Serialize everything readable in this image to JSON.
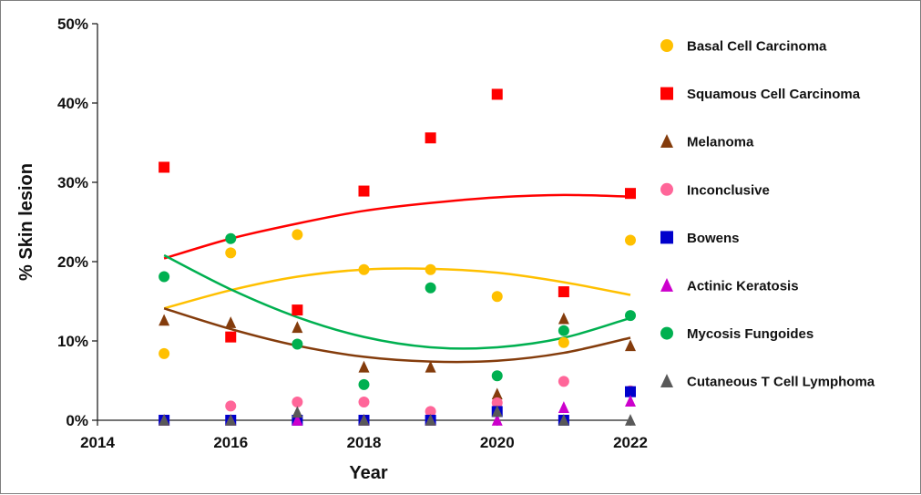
{
  "chart_data": {
    "type": "scatter",
    "title": "",
    "xlabel": "Year",
    "ylabel": "% Skin lesion",
    "xlim": [
      2014,
      2022
    ],
    "ylim": [
      0,
      50
    ],
    "x_ticks": [
      2014,
      2016,
      2018,
      2020,
      2022
    ],
    "x_tick_labels": [
      "2014",
      "2016",
      "2018",
      "2020",
      "2022"
    ],
    "y_ticks": [
      0,
      10,
      20,
      30,
      40,
      50
    ],
    "y_tick_labels": [
      "0%",
      "10%",
      "20%",
      "30%",
      "40%",
      "50%"
    ],
    "legend_position": "right",
    "series": [
      {
        "name": "Basal Cell Carcinoma",
        "color": "#FFC000",
        "marker": "circle",
        "x": [
          2015,
          2016,
          2017,
          2018,
          2019,
          2020,
          2021,
          2022
        ],
        "y": [
          8.4,
          21.1,
          23.4,
          19.0,
          19.0,
          15.6,
          9.8,
          22.7
        ],
        "trendline": [
          14.1,
          16.4,
          18.1,
          19.0,
          19.1,
          18.6,
          17.4,
          15.8
        ]
      },
      {
        "name": "Squamous Cell Carcinoma",
        "color": "#FF0000",
        "marker": "square",
        "x": [
          2015,
          2016,
          2017,
          2018,
          2019,
          2020,
          2021,
          2022
        ],
        "y": [
          31.9,
          10.5,
          13.9,
          28.9,
          35.6,
          41.1,
          16.2,
          28.6
        ],
        "trendline": [
          20.4,
          22.9,
          24.8,
          26.4,
          27.4,
          28.1,
          28.4,
          28.2
        ]
      },
      {
        "name": "Melanoma",
        "color": "#843C0C",
        "marker": "triangle",
        "x": [
          2015,
          2016,
          2017,
          2018,
          2019,
          2020,
          2021,
          2022
        ],
        "y": [
          12.6,
          12.3,
          11.7,
          6.7,
          6.7,
          3.3,
          12.8,
          9.4
        ],
        "trendline": [
          14.1,
          11.5,
          9.4,
          8.0,
          7.4,
          7.5,
          8.5,
          10.4
        ]
      },
      {
        "name": "Inconclusive",
        "color": "#FF6699",
        "marker": "circle",
        "x": [
          2015,
          2016,
          2017,
          2018,
          2019,
          2020,
          2021,
          2022
        ],
        "y": [
          0,
          1.8,
          2.3,
          2.3,
          1.1,
          2.2,
          4.9,
          3.7
        ]
      },
      {
        "name": "Bowens",
        "color": "#0000CC",
        "marker": "square",
        "x": [
          2015,
          2016,
          2017,
          2018,
          2019,
          2020,
          2021,
          2022
        ],
        "y": [
          0,
          0,
          0,
          0,
          0,
          1.1,
          0,
          3.6
        ]
      },
      {
        "name": "Actinic Keratosis",
        "color": "#CC00CC",
        "marker": "triangle",
        "x": [
          2015,
          2016,
          2017,
          2018,
          2019,
          2020,
          2021,
          2022
        ],
        "y": [
          0,
          0,
          0,
          0,
          0,
          0,
          1.6,
          2.4
        ]
      },
      {
        "name": "Mycosis Fungoides",
        "color": "#00B050",
        "marker": "circle",
        "x": [
          2015,
          2016,
          2017,
          2018,
          2019,
          2020,
          2021,
          2022
        ],
        "y": [
          18.1,
          22.9,
          9.6,
          4.5,
          16.7,
          5.6,
          11.3,
          13.2
        ],
        "trendline": [
          20.8,
          16.5,
          13.0,
          10.5,
          9.2,
          9.2,
          10.4,
          12.9
        ]
      },
      {
        "name": "Cutaneous T Cell Lymphoma",
        "color": "#595959",
        "marker": "triangle",
        "x": [
          2015,
          2016,
          2017,
          2018,
          2019,
          2020,
          2021,
          2022
        ],
        "y": [
          0,
          0,
          1.0,
          0,
          0,
          1.1,
          0,
          0
        ]
      }
    ]
  }
}
